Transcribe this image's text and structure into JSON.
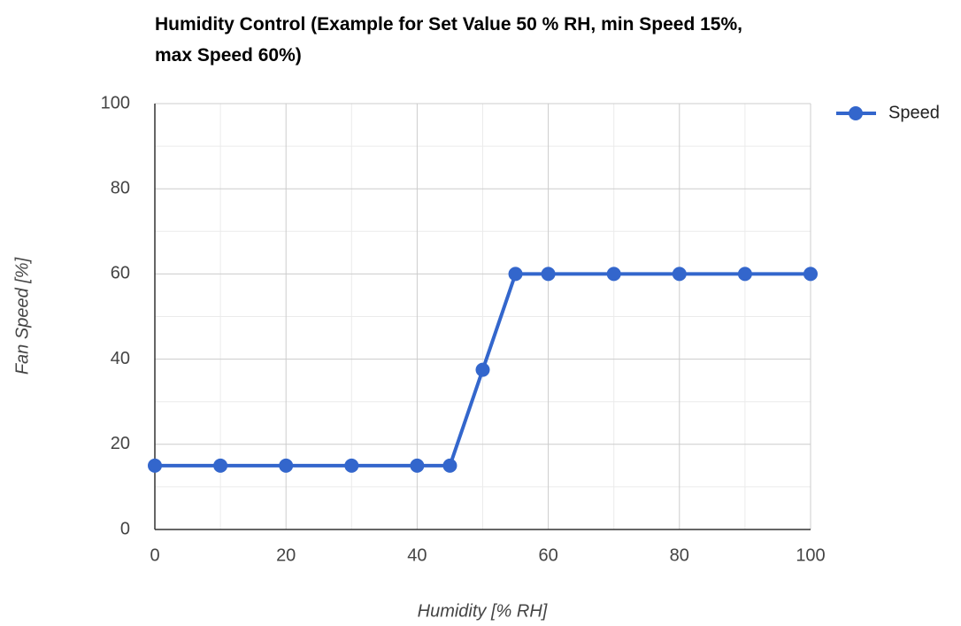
{
  "chart_data": {
    "type": "line",
    "title": "Humidity Control (Example for Set Value 50 % RH, min Speed 15%, max Speed 60%)",
    "x_label": "Humidity [% RH]",
    "y_label": "Fan Speed [%]",
    "x": [
      0,
      10,
      20,
      30,
      40,
      45,
      50,
      55,
      60,
      70,
      80,
      90,
      100
    ],
    "series": [
      {
        "name": "Speed",
        "color": "#3366cc",
        "values": [
          15,
          15,
          15,
          15,
          15,
          15,
          37.5,
          60,
          60,
          60,
          60,
          60,
          60
        ]
      }
    ],
    "xlim": [
      0,
      100
    ],
    "ylim": [
      0,
      100
    ],
    "xticks": [
      0,
      20,
      40,
      60,
      80,
      100
    ],
    "yticks": [
      0,
      20,
      40,
      60,
      80,
      100
    ],
    "x_minor_ticks": [
      10,
      30,
      50,
      70,
      90
    ],
    "y_minor_ticks": [
      10,
      30,
      50,
      70,
      90
    ],
    "grid": true,
    "legend": "right"
  }
}
